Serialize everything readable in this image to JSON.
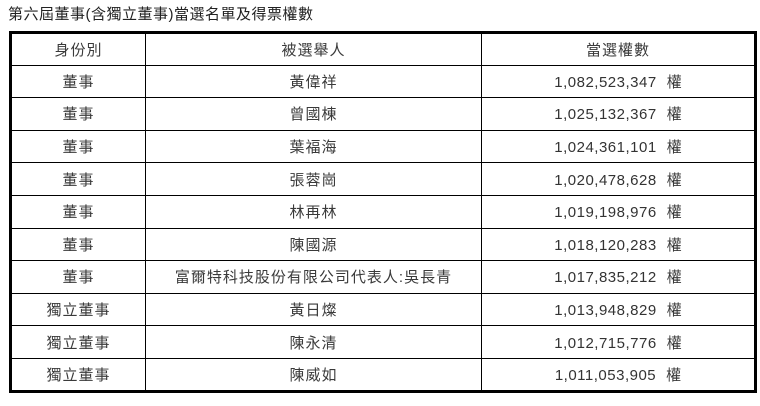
{
  "page": {
    "title": "第六屆董事(含獨立董事)當選名單及得票權數"
  },
  "table": {
    "headers": {
      "identity": "身份別",
      "candidate": "被選舉人",
      "votes": "當選權數"
    },
    "rows": [
      {
        "identity": "董事",
        "candidate": "黃偉祥",
        "votes": "1,082,523,347",
        "unit": "權"
      },
      {
        "identity": "董事",
        "candidate": "曾國棟",
        "votes": "1,025,132,367",
        "unit": "權"
      },
      {
        "identity": "董事",
        "candidate": "葉福海",
        "votes": "1,024,361,101",
        "unit": "權"
      },
      {
        "identity": "董事",
        "candidate": "張蓉崗",
        "votes": "1,020,478,628",
        "unit": "權"
      },
      {
        "identity": "董事",
        "candidate": "林再林",
        "votes": "1,019,198,976",
        "unit": "權"
      },
      {
        "identity": "董事",
        "candidate": "陳國源",
        "votes": "1,018,120,283",
        "unit": "權"
      },
      {
        "identity": "董事",
        "candidate": "富爾特科技股份有限公司代表人:吳長青",
        "votes": "1,017,835,212",
        "unit": "權"
      },
      {
        "identity": "獨立董事",
        "candidate": "黃日燦",
        "votes": "1,013,948,829",
        "unit": "權"
      },
      {
        "identity": "獨立董事",
        "candidate": "陳永清",
        "votes": "1,012,715,776",
        "unit": "權"
      },
      {
        "identity": "獨立董事",
        "candidate": "陳威如",
        "votes": "1,011,053,905",
        "unit": "權"
      }
    ]
  }
}
